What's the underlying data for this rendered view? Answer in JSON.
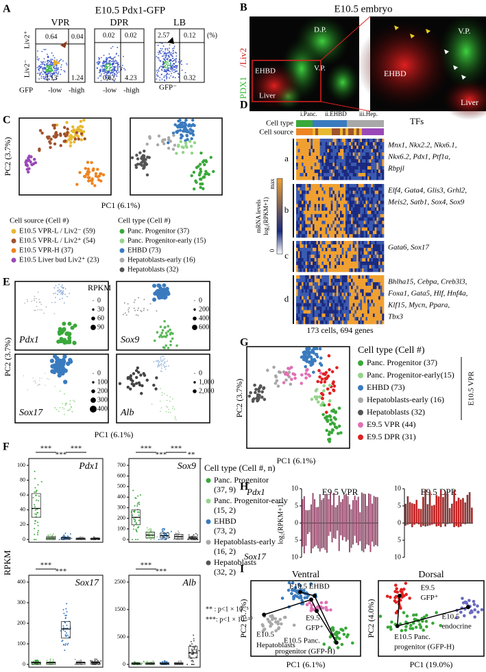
{
  "a": {
    "label": "A",
    "title": "E10.5 Pdx1-GFP",
    "gates": [
      "VPR",
      "DPR",
      "LB"
    ],
    "y_pos": "Liv2⁺",
    "y_neg": "Liv2⁻",
    "x_title": "GFP",
    "x_low": [
      "-low",
      "-low"
    ],
    "x_high": [
      "-high",
      "-high"
    ],
    "x_neg": "GFP⁻",
    "unit": "(%)",
    "quadrants": [
      [
        "0.64",
        "0.04",
        "2.13",
        "1.24"
      ],
      [
        "0.02",
        "0.02",
        "0.62",
        "4.23"
      ],
      [
        "2.57",
        "0.12",
        "0.32"
      ]
    ]
  },
  "b": {
    "label": "B",
    "title": "E10.5 embryo",
    "stain_green": "PDX1",
    "stain_red": "/Liv2",
    "left_labels": [
      "D.P.",
      "EHBD",
      "Liver",
      "V.P."
    ],
    "right_labels": [
      "V.P.",
      "EHBD",
      "Liver"
    ]
  },
  "c": {
    "label": "C",
    "y_title": "PC2 (3.7%)",
    "x_title": "PC1 (6.1%)",
    "source_legend": {
      "title": "Cell source (Cell #)",
      "items": [
        {
          "name": "E10.5 VPR-L / Liv2⁻ (59)",
          "color": "#e8b830"
        },
        {
          "name": "E10.5 VPR-L / Liv2⁺ (54)",
          "color": "#a0522d"
        },
        {
          "name": "E10.5 VPR-H (37)",
          "color": "#ee8420"
        },
        {
          "name": "E10.5 Liver bud Liv2⁺ (23)",
          "color": "#9a48b8"
        }
      ]
    },
    "type_legend": {
      "title": "Cell type (Cell #)",
      "items": [
        {
          "name": "Panc. Progenitor (37)",
          "color": "#3aa83a"
        },
        {
          "name": "Panc. Progenitor-early (15)",
          "color": "#94d48a"
        },
        {
          "name": "EHBD (73)",
          "color": "#3a7bbf"
        },
        {
          "name": "Hepatoblasts-early (16)",
          "color": "#a8a8a8"
        },
        {
          "name": "Hepatoblasts (32)",
          "color": "#555555"
        }
      ]
    }
  },
  "d": {
    "label": "D",
    "row_titles": [
      "Cell type",
      "Cell source"
    ],
    "groups": [
      "i.Panc.",
      "ii.EHBD",
      "iii.Hep."
    ],
    "tf_title": "TFs",
    "blocks": [
      {
        "name": "a",
        "genes": [
          "Mnx1, Nkx2.2, Nkx6.1,",
          "Nkx6.2, Pdx1, Ptf1a,",
          "Rbpjl"
        ]
      },
      {
        "name": "b",
        "genes": [
          "Elf4, Gata4, Glis3, Grhl2,",
          "Meis2, Satb1, Sox4, Sox9"
        ]
      },
      {
        "name": "c",
        "genes": [
          "Gata6, Sox17"
        ]
      },
      {
        "name": "d",
        "genes": [
          "Bhlha15, Cebpa, Creb3l3,",
          "Foxa1, Gata5, Hlf, Hnf4a,",
          "Klf15, Mycn, Ppara,",
          "Tbx3"
        ]
      }
    ],
    "scale_title": "mRNA levels",
    "scale_unit": "log₂(RPKM+1)",
    "scale_max": "max",
    "scale_min": "0",
    "footer": "173 cells, 694 genes"
  },
  "e": {
    "label": "E",
    "size_title": "RPKM",
    "y_title": "PC2 (3.7%)",
    "x_title": "PC1 (6.1%)",
    "panels": [
      {
        "gene": "Pdx1",
        "ticks": [
          "0",
          "30",
          "60",
          "90"
        ]
      },
      {
        "gene": "Sox9",
        "ticks": [
          "0",
          "200",
          "400",
          "600"
        ]
      },
      {
        "gene": "Sox17",
        "ticks": [
          "0",
          "100",
          "200",
          "300",
          "400"
        ]
      },
      {
        "gene": "Alb",
        "ticks": [
          "0",
          "1,000",
          "2,000"
        ]
      }
    ]
  },
  "f": {
    "label": "F",
    "y_title": "RPKM",
    "panels": [
      {
        "gene": "Pdx1",
        "ticks": [
          "0",
          "20",
          "40",
          "60",
          "80",
          "100"
        ],
        "sig": [
          "***",
          "***",
          "***"
        ]
      },
      {
        "gene": "Sox9",
        "ticks": [
          "0",
          "100",
          "200",
          "300",
          "400",
          "500",
          "600",
          "700"
        ],
        "sig": [
          "***",
          "***",
          "***",
          "**"
        ]
      },
      {
        "gene": "Sox17",
        "ticks": [
          "0",
          "100",
          "200",
          "300",
          "400"
        ],
        "sig": [
          "***",
          "***"
        ]
      },
      {
        "gene": "Alb",
        "ticks": [
          "0",
          "500",
          "1500",
          "2500"
        ],
        "sig": [
          "***",
          "***"
        ]
      }
    ],
    "legend": {
      "title": "Cell type (Cell #, n)",
      "items": [
        {
          "name": "Panc. Progenitor",
          "n": "(37, 9)",
          "color": "#3aa83a"
        },
        {
          "name": "Panc. Progenitor-early",
          "n": "(15, 2)",
          "color": "#94d48a"
        },
        {
          "name": "EHBD",
          "n": "(73, 2)",
          "color": "#3a7bbf"
        },
        {
          "name": "Hepatoblasts-early",
          "n": "(16, 2)",
          "color": "#a8a8a8"
        },
        {
          "name": "Hepatoblasts",
          "n": "(32, 2)",
          "color": "#555555"
        }
      ]
    },
    "p_notes": [
      "** : p<1 × 10⁻⁵",
      "***: p<1 × 10⁻¹⁰"
    ]
  },
  "g": {
    "label": "G",
    "y_title": "PC2 (3.7%)",
    "x_title": "PC1 (6.1%)",
    "group": "E10.5 VPR",
    "legend": {
      "title": "Cell type (Cell #)",
      "items": [
        {
          "name": "Panc. Progenitor (37)",
          "color": "#3aa83a"
        },
        {
          "name": "Panc. Progenitor-early(15)",
          "color": "#94d48a"
        },
        {
          "name": "EHBD (73)",
          "color": "#3a7bbf"
        },
        {
          "name": "Hepatoblasts-early (16)",
          "color": "#a8a8a8"
        },
        {
          "name": "Hepatoblasts (32)",
          "color": "#555555"
        },
        {
          "name": "E9.5 VPR (44)",
          "color": "#e070b4"
        },
        {
          "name": "E9.5 DPR (31)",
          "color": "#e02020"
        }
      ]
    }
  },
  "h": {
    "label": "H",
    "top_gene": "Pdx1",
    "bottom_gene": "Sox17",
    "titles": [
      "E9.5 VPR",
      "E9.5 DPR"
    ],
    "y_title": "log₂(RPKM+1)",
    "ticks": [
      "10",
      "5",
      "0",
      "5",
      "10"
    ]
  },
  "i": {
    "label": "I",
    "panels": [
      {
        "title": "Ventral",
        "y_title": "PC2 (3.7%)",
        "x_title": "PC1 (6.1%)",
        "notes": [
          [
            "E10.5 EHBD"
          ],
          [
            "E9.5",
            "GFP⁺"
          ],
          [
            "E10.5",
            "Hepatoblasts"
          ],
          [
            "E10.5 Panc.",
            "progenitor (GFP-H)"
          ]
        ]
      },
      {
        "title": "Dorsal",
        "y_title": "PC2 (4.0%)",
        "x_title": "PC1 (19.0%)",
        "notes": [
          [
            "E9.5",
            "GFP⁺"
          ],
          [
            "E10.5",
            "endocrine"
          ],
          [
            "E10.5 Panc.",
            "progenitor (GFP-H)"
          ]
        ]
      }
    ]
  }
}
